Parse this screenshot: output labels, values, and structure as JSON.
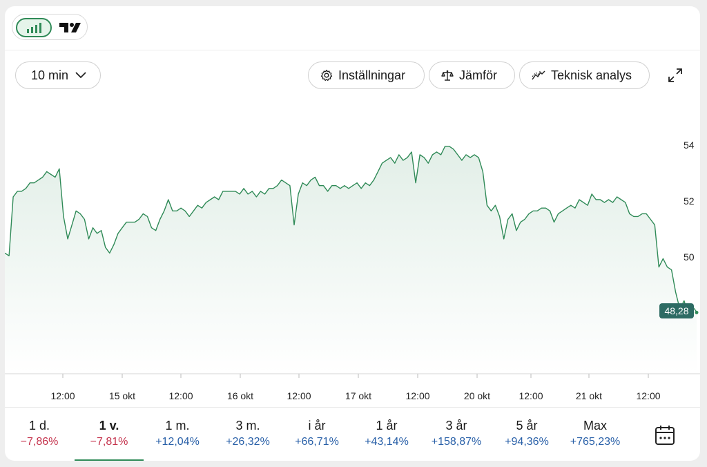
{
  "view_toggle": {
    "chart_icon": "bar-chart-icon",
    "tradingview_logo": "tradingview-logo"
  },
  "toolbar": {
    "interval": "10 min",
    "settings": "Inställningar",
    "compare": "Jämför",
    "technical": "Teknisk analys"
  },
  "chart_data": {
    "type": "area",
    "y_ticks": [
      "54",
      "52",
      "50"
    ],
    "ylim": [
      46.1,
      55.5
    ],
    "x_ticks": [
      "12:00",
      "15 okt",
      "12:00",
      "16 okt",
      "12:00",
      "17 okt",
      "12:00",
      "20 okt",
      "12:00",
      "21 okt",
      "12:00"
    ],
    "last_price_label": "48,28",
    "last_price": 48.28,
    "line_color": "#2f8a57",
    "tag_color": "#2d6b63",
    "series": [
      {
        "values": [
          50.4,
          50.3,
          52.4,
          52.6,
          52.6,
          52.7,
          52.9,
          52.9,
          53.0,
          53.1,
          53.3,
          53.2,
          53.1,
          53.4,
          51.7,
          50.9,
          51.4,
          51.9,
          51.8,
          51.6,
          50.9,
          51.3,
          51.1,
          51.2,
          50.6,
          50.4,
          50.7,
          51.1,
          51.3,
          51.5,
          51.5,
          51.5,
          51.6,
          51.8,
          51.7,
          51.3,
          51.2,
          51.6,
          51.9,
          52.3,
          51.9,
          51.9,
          52.0,
          51.9,
          51.7,
          51.9,
          52.1,
          52.0,
          52.2,
          52.3,
          52.4,
          52.3,
          52.6,
          52.6,
          52.6,
          52.6,
          52.5,
          52.7,
          52.5,
          52.6,
          52.4,
          52.6,
          52.5,
          52.7,
          52.7,
          52.8,
          53.0,
          52.9,
          52.8,
          51.4,
          52.5,
          52.9,
          52.8,
          53.0,
          53.1,
          52.8,
          52.8,
          52.6,
          52.8,
          52.8,
          52.7,
          52.8,
          52.7,
          52.8,
          52.9,
          52.7,
          52.9,
          52.8,
          53.0,
          53.3,
          53.6,
          53.7,
          53.8,
          53.6,
          53.9,
          53.7,
          53.8,
          54.0,
          52.9,
          53.9,
          53.8,
          53.6,
          53.9,
          54.0,
          53.9,
          54.2,
          54.2,
          54.1,
          53.9,
          53.7,
          53.9,
          53.8,
          53.9,
          53.8,
          53.3,
          52.1,
          51.9,
          52.1,
          51.7,
          50.9,
          51.6,
          51.8,
          51.2,
          51.5,
          51.6,
          51.8,
          51.9,
          51.9,
          52.0,
          52.0,
          51.9,
          51.5,
          51.8,
          51.9,
          52.0,
          52.1,
          52.0,
          52.3,
          52.2,
          52.1,
          52.5,
          52.3,
          52.3,
          52.2,
          52.3,
          52.2,
          52.4,
          52.3,
          52.2,
          51.8,
          51.7,
          51.7,
          51.8,
          51.8,
          51.6,
          51.4,
          49.9,
          50.2,
          49.9,
          49.8,
          49.0,
          48.4,
          48.7,
          48.2,
          48.5,
          48.3
        ]
      }
    ]
  },
  "periods": [
    {
      "label": "1 d.",
      "change": "−7,86%",
      "dir": "neg"
    },
    {
      "label": "1 v.",
      "change": "−7,81%",
      "dir": "neg"
    },
    {
      "label": "1 m.",
      "change": "+12,04%",
      "dir": "pos"
    },
    {
      "label": "3 m.",
      "change": "+26,32%",
      "dir": "pos"
    },
    {
      "label": "i år",
      "change": "+66,71%",
      "dir": "pos"
    },
    {
      "label": "1 år",
      "change": "+43,14%",
      "dir": "pos"
    },
    {
      "label": "3 år",
      "change": "+158,87%",
      "dir": "pos"
    },
    {
      "label": "5 år",
      "change": "+94,36%",
      "dir": "pos"
    },
    {
      "label": "Max",
      "change": "+765,23%",
      "dir": "pos"
    }
  ],
  "active_period": "1 v.",
  "icons": {
    "interval": "chevron-down-icon",
    "settings": "gear-icon",
    "compare": "scale-icon",
    "technical": "trend-line-icon",
    "expand": "expand-icon",
    "calendar": "calendar-icon"
  }
}
